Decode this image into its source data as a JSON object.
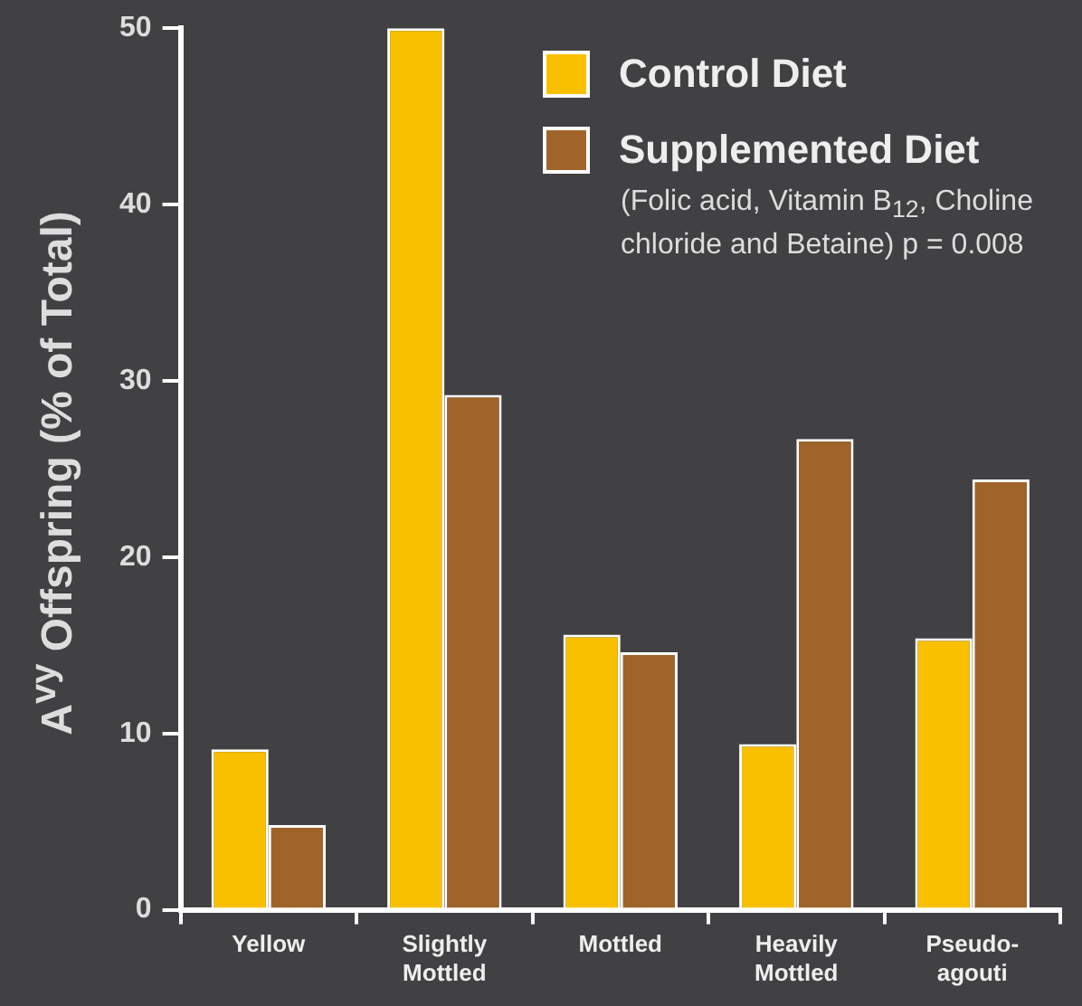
{
  "chart_data": {
    "type": "bar",
    "ylabel": "A$^{vy}$ Offspring (% of Total)",
    "categories": [
      "Yellow",
      "Slightly Mottled",
      "Mottled",
      "Heavily Mottled",
      "Pseudo-agouti"
    ],
    "series": [
      {
        "name": "Control Diet",
        "color": "#f9c000",
        "values": [
          9.1,
          50,
          15.6,
          9.4,
          15.4
        ]
      },
      {
        "name": "Supplemented Diet",
        "color": "#a0642a",
        "values": [
          4.8,
          29.2,
          14.6,
          26.7,
          24.4
        ]
      }
    ],
    "ylim": [
      0,
      50
    ],
    "yticks": [
      0,
      10,
      20,
      30,
      40,
      50
    ],
    "grid": false,
    "legend": "top right",
    "annotations": [
      "(Folic acid, Vitamin B$_{12}$, Choline chloride and Betaine) p = 0.008"
    ]
  }
}
